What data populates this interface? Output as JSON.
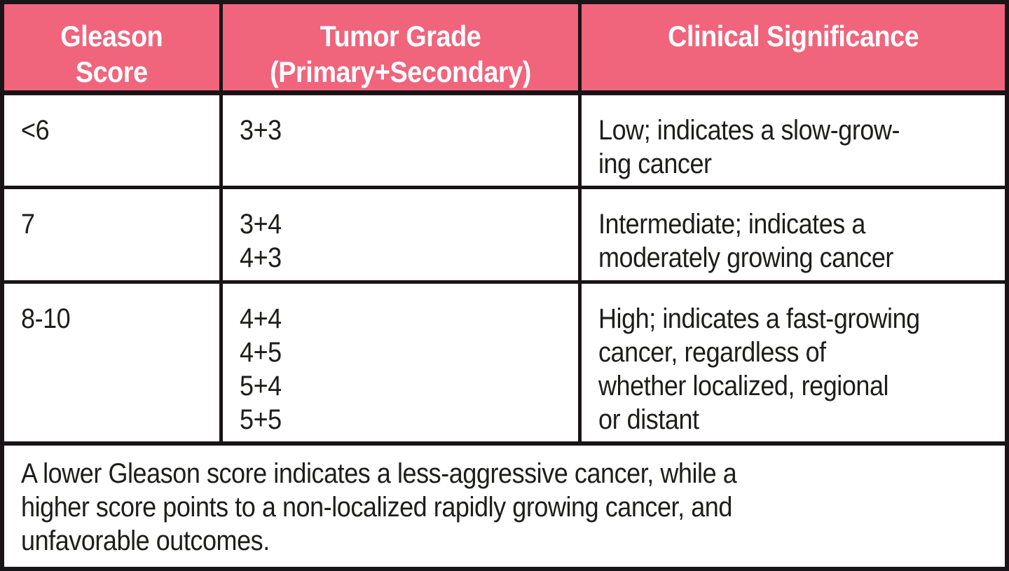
{
  "colors": {
    "header_background": "#f0647c",
    "header_text": "#ffffff",
    "border": "#1a1418",
    "body_text": "#1d1d1b",
    "cell_background": "#ffffff"
  },
  "table": {
    "headers": [
      "Gleason\nScore",
      "Tumor Grade\n(Primary+Secondary)",
      "Clinical Significance"
    ],
    "rows": [
      {
        "score": "<6",
        "grades": "3+3",
        "significance": "Low; indicates a slow-grow-\ning cancer"
      },
      {
        "score": "7",
        "grades": "3+4\n4+3",
        "significance": "Intermediate; indicates a\nmoderately growing cancer"
      },
      {
        "score": "8-10",
        "grades": "4+4\n4+5\n5+4\n5+5",
        "significance": "High; indicates a fast-growing\ncancer, regardless of\nwhether localized, regional\nor distant"
      }
    ],
    "footnote": "A lower Gleason score indicates a less-aggressive cancer, while a\nhigher score points to a non-localized rapidly growing cancer, and\nunfavorable outcomes."
  },
  "chart_data": {
    "type": "table",
    "title": "Gleason Score reference table",
    "columns": [
      "Gleason Score",
      "Tumor Grade (Primary+Secondary)",
      "Clinical Significance"
    ],
    "rows": [
      [
        "<6",
        "3+3",
        "Low; indicates a slow-growing cancer"
      ],
      [
        "7",
        "3+4; 4+3",
        "Intermediate; indicates a moderately growing cancer"
      ],
      [
        "8-10",
        "4+4; 4+5; 5+4; 5+5",
        "High; indicates a fast-growing cancer, regardless of whether localized, regional or distant"
      ]
    ],
    "footnote": "A lower Gleason score indicates a less-aggressive cancer, while a higher score points to a non-localized rapidly growing cancer, and unfavorable outcomes.",
    "layout_hints": {
      "header_fill": "#f0647c",
      "header_text_color": "#ffffff",
      "grid": "heavy black rules",
      "footnote_spans_all_columns": true
    }
  }
}
